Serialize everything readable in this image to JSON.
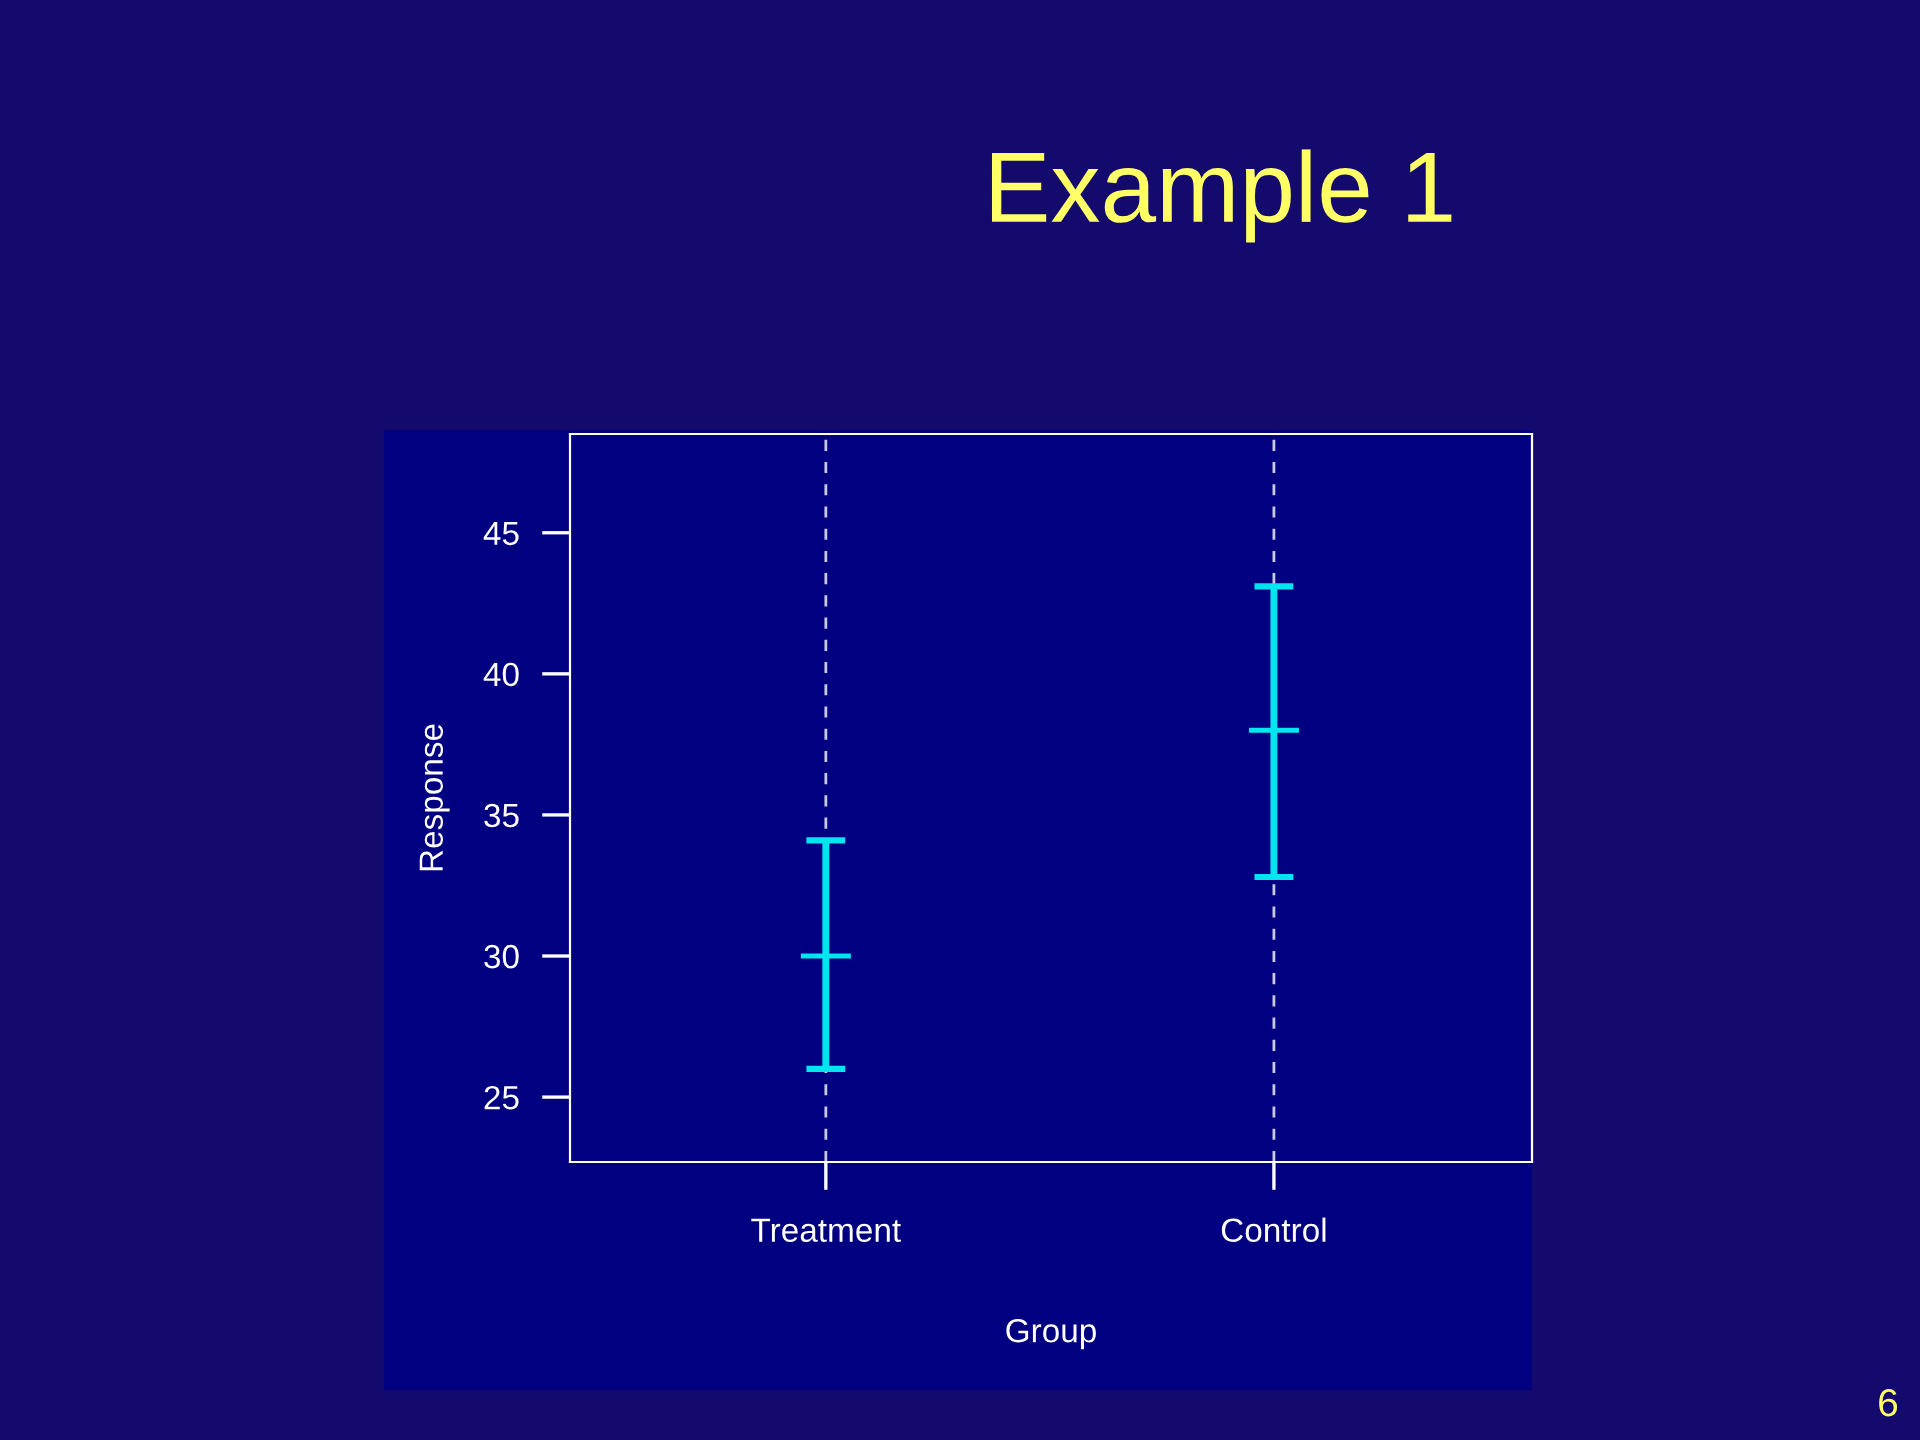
{
  "chart_data": {
    "type": "scatter",
    "title": "Example 1",
    "xlabel": "Group",
    "ylabel": "Response",
    "categories": [
      "Treatment",
      "Control"
    ],
    "series": [
      {
        "color": "#00e5ee",
        "values": [
          30,
          38
        ],
        "errors": [
          [
            26,
            34.1
          ],
          [
            32.8,
            43.1
          ]
        ]
      }
    ],
    "marker": "cross",
    "ylim": [
      22.7,
      48.5
    ],
    "yticks": [
      25,
      30,
      35,
      40,
      45
    ],
    "grid": "x",
    "annotations": [
      "6"
    ]
  }
}
